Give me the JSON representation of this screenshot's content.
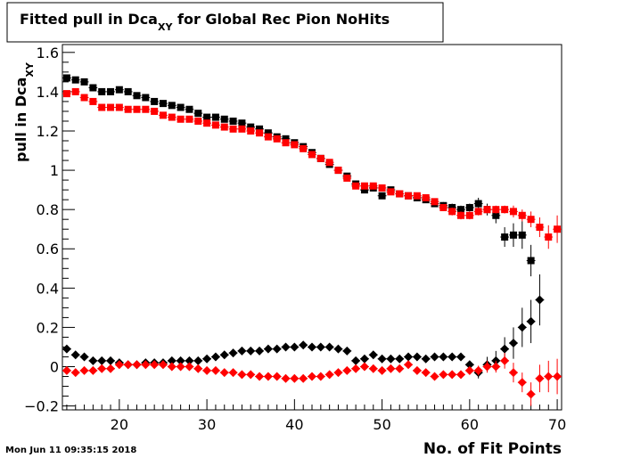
{
  "chart_data": {
    "type": "scatter",
    "title": "Fitted pull in Dca",
    "title_sub": "XY",
    "title_rest": " for Global Rec Pion NoHits",
    "ylabel": "pull in Dca",
    "ylabel_sub": "XY",
    "xlabel": "No. of Fit Points",
    "timestamp": "Mon Jun 11 09:35:15 2018",
    "xlim": [
      13.5,
      70.5
    ],
    "ylim": [
      -0.22,
      1.64
    ],
    "x_ticks": [
      20,
      30,
      40,
      50,
      60,
      70
    ],
    "y_ticks": [
      -0.2,
      0,
      0.2,
      0.4,
      0.6,
      0.8,
      1,
      1.2,
      1.4,
      1.6
    ],
    "y_tick_labels": [
      "−0.2",
      "0",
      "0.2",
      "0.4",
      "0.6",
      "0.8",
      "1",
      "1.2",
      "1.4",
      "1.6"
    ],
    "series": [
      {
        "color": "#000000",
        "marker": "square",
        "points": [
          [
            14,
            1.47
          ],
          [
            15,
            1.46
          ],
          [
            16,
            1.45
          ],
          [
            17,
            1.42
          ],
          [
            18,
            1.4
          ],
          [
            19,
            1.4
          ],
          [
            20,
            1.41
          ],
          [
            21,
            1.4
          ],
          [
            22,
            1.38
          ],
          [
            23,
            1.37
          ],
          [
            24,
            1.35
          ],
          [
            25,
            1.34
          ],
          [
            26,
            1.33
          ],
          [
            27,
            1.32
          ],
          [
            28,
            1.31
          ],
          [
            29,
            1.29
          ],
          [
            30,
            1.27
          ],
          [
            31,
            1.27
          ],
          [
            32,
            1.26
          ],
          [
            33,
            1.25
          ],
          [
            34,
            1.24
          ],
          [
            35,
            1.22
          ],
          [
            36,
            1.21
          ],
          [
            37,
            1.19
          ],
          [
            38,
            1.17
          ],
          [
            39,
            1.16
          ],
          [
            40,
            1.14
          ],
          [
            41,
            1.12
          ],
          [
            42,
            1.09
          ],
          [
            43,
            1.06
          ],
          [
            44,
            1.03
          ],
          [
            45,
            1.0
          ],
          [
            46,
            0.97
          ],
          [
            47,
            0.93
          ],
          [
            48,
            0.9
          ],
          [
            49,
            0.91
          ],
          [
            50,
            0.87
          ],
          [
            51,
            0.9
          ],
          [
            52,
            0.88
          ],
          [
            53,
            0.87
          ],
          [
            54,
            0.86
          ],
          [
            55,
            0.85
          ],
          [
            56,
            0.83
          ],
          [
            57,
            0.82
          ],
          [
            58,
            0.81
          ],
          [
            59,
            0.8
          ],
          [
            60,
            0.81
          ],
          [
            61,
            0.83
          ],
          [
            62,
            0.8
          ],
          [
            63,
            0.77
          ],
          [
            64,
            0.66
          ],
          [
            65,
            0.67
          ],
          [
            66,
            0.67
          ],
          [
            67,
            0.54
          ]
        ],
        "errors": [
          0.008,
          0.008,
          0.008,
          0.008,
          0.008,
          0.008,
          0.008,
          0.008,
          0.008,
          0.008,
          0.008,
          0.008,
          0.008,
          0.008,
          0.008,
          0.008,
          0.008,
          0.008,
          0.008,
          0.008,
          0.008,
          0.008,
          0.008,
          0.008,
          0.008,
          0.008,
          0.008,
          0.008,
          0.008,
          0.008,
          0.008,
          0.008,
          0.01,
          0.01,
          0.01,
          0.01,
          0.012,
          0.012,
          0.012,
          0.012,
          0.014,
          0.015,
          0.016,
          0.018,
          0.02,
          0.02,
          0.02,
          0.03,
          0.03,
          0.04,
          0.05,
          0.06,
          0.07,
          0.08
        ]
      },
      {
        "color": "#ff0000",
        "marker": "square",
        "points": [
          [
            14,
            1.39
          ],
          [
            15,
            1.4
          ],
          [
            16,
            1.37
          ],
          [
            17,
            1.35
          ],
          [
            18,
            1.32
          ],
          [
            19,
            1.32
          ],
          [
            20,
            1.32
          ],
          [
            21,
            1.31
          ],
          [
            22,
            1.31
          ],
          [
            23,
            1.31
          ],
          [
            24,
            1.3
          ],
          [
            25,
            1.28
          ],
          [
            26,
            1.27
          ],
          [
            27,
            1.26
          ],
          [
            28,
            1.26
          ],
          [
            29,
            1.25
          ],
          [
            30,
            1.24
          ],
          [
            31,
            1.23
          ],
          [
            32,
            1.22
          ],
          [
            33,
            1.21
          ],
          [
            34,
            1.21
          ],
          [
            35,
            1.2
          ],
          [
            36,
            1.19
          ],
          [
            37,
            1.17
          ],
          [
            38,
            1.16
          ],
          [
            39,
            1.14
          ],
          [
            40,
            1.13
          ],
          [
            41,
            1.11
          ],
          [
            42,
            1.08
          ],
          [
            43,
            1.06
          ],
          [
            44,
            1.04
          ],
          [
            45,
            1.0
          ],
          [
            46,
            0.96
          ],
          [
            47,
            0.92
          ],
          [
            48,
            0.92
          ],
          [
            49,
            0.92
          ],
          [
            50,
            0.91
          ],
          [
            51,
            0.89
          ],
          [
            52,
            0.88
          ],
          [
            53,
            0.87
          ],
          [
            54,
            0.87
          ],
          [
            55,
            0.86
          ],
          [
            56,
            0.84
          ],
          [
            57,
            0.81
          ],
          [
            58,
            0.79
          ],
          [
            59,
            0.77
          ],
          [
            60,
            0.77
          ],
          [
            61,
            0.79
          ],
          [
            62,
            0.8
          ],
          [
            63,
            0.8
          ],
          [
            64,
            0.8
          ],
          [
            65,
            0.79
          ],
          [
            66,
            0.77
          ],
          [
            67,
            0.75
          ],
          [
            68,
            0.71
          ],
          [
            69,
            0.66
          ],
          [
            70,
            0.7
          ]
        ],
        "errors": [
          0.008,
          0.008,
          0.008,
          0.008,
          0.008,
          0.008,
          0.008,
          0.008,
          0.008,
          0.008,
          0.008,
          0.008,
          0.008,
          0.008,
          0.008,
          0.008,
          0.008,
          0.008,
          0.008,
          0.008,
          0.008,
          0.008,
          0.008,
          0.008,
          0.008,
          0.008,
          0.008,
          0.008,
          0.008,
          0.008,
          0.008,
          0.008,
          0.01,
          0.01,
          0.01,
          0.01,
          0.012,
          0.012,
          0.012,
          0.012,
          0.014,
          0.015,
          0.016,
          0.018,
          0.02,
          0.02,
          0.02,
          0.02,
          0.02,
          0.02,
          0.02,
          0.03,
          0.03,
          0.04,
          0.05,
          0.06,
          0.07
        ]
      },
      {
        "color": "#000000",
        "marker": "diamond",
        "points": [
          [
            14,
            0.09
          ],
          [
            15,
            0.06
          ],
          [
            16,
            0.05
          ],
          [
            17,
            0.03
          ],
          [
            18,
            0.03
          ],
          [
            19,
            0.03
          ],
          [
            20,
            0.02
          ],
          [
            21,
            0.01
          ],
          [
            22,
            0.01
          ],
          [
            23,
            0.02
          ],
          [
            24,
            0.02
          ],
          [
            25,
            0.02
          ],
          [
            26,
            0.03
          ],
          [
            27,
            0.03
          ],
          [
            28,
            0.03
          ],
          [
            29,
            0.03
          ],
          [
            30,
            0.04
          ],
          [
            31,
            0.05
          ],
          [
            32,
            0.06
          ],
          [
            33,
            0.07
          ],
          [
            34,
            0.08
          ],
          [
            35,
            0.08
          ],
          [
            36,
            0.08
          ],
          [
            37,
            0.09
          ],
          [
            38,
            0.09
          ],
          [
            39,
            0.1
          ],
          [
            40,
            0.1
          ],
          [
            41,
            0.11
          ],
          [
            42,
            0.1
          ],
          [
            43,
            0.1
          ],
          [
            44,
            0.1
          ],
          [
            45,
            0.09
          ],
          [
            46,
            0.08
          ],
          [
            47,
            0.03
          ],
          [
            48,
            0.04
          ],
          [
            49,
            0.06
          ],
          [
            50,
            0.04
          ],
          [
            51,
            0.04
          ],
          [
            52,
            0.04
          ],
          [
            53,
            0.05
          ],
          [
            54,
            0.05
          ],
          [
            55,
            0.04
          ],
          [
            56,
            0.05
          ],
          [
            57,
            0.05
          ],
          [
            58,
            0.05
          ],
          [
            59,
            0.05
          ],
          [
            60,
            0.01
          ],
          [
            61,
            -0.03
          ],
          [
            62,
            0.01
          ],
          [
            63,
            0.03
          ],
          [
            64,
            0.09
          ],
          [
            65,
            0.12
          ],
          [
            66,
            0.2
          ],
          [
            67,
            0.23
          ],
          [
            68,
            0.34
          ]
        ],
        "errors": [
          0.008,
          0.008,
          0.008,
          0.008,
          0.008,
          0.008,
          0.008,
          0.008,
          0.008,
          0.008,
          0.008,
          0.008,
          0.008,
          0.008,
          0.008,
          0.008,
          0.008,
          0.008,
          0.008,
          0.008,
          0.008,
          0.008,
          0.008,
          0.008,
          0.008,
          0.008,
          0.008,
          0.008,
          0.008,
          0.008,
          0.008,
          0.008,
          0.008,
          0.01,
          0.01,
          0.01,
          0.01,
          0.012,
          0.012,
          0.012,
          0.012,
          0.014,
          0.014,
          0.015,
          0.016,
          0.018,
          0.02,
          0.03,
          0.04,
          0.05,
          0.06,
          0.08,
          0.1,
          0.11,
          0.13
        ]
      },
      {
        "color": "#ff0000",
        "marker": "diamond",
        "points": [
          [
            14,
            -0.02
          ],
          [
            15,
            -0.03
          ],
          [
            16,
            -0.02
          ],
          [
            17,
            -0.02
          ],
          [
            18,
            -0.01
          ],
          [
            19,
            -0.01
          ],
          [
            20,
            0.01
          ],
          [
            21,
            0.01
          ],
          [
            22,
            0.01
          ],
          [
            23,
            0.01
          ],
          [
            24,
            0.01
          ],
          [
            25,
            0.01
          ],
          [
            26,
            0.0
          ],
          [
            27,
            0.0
          ],
          [
            28,
            0.0
          ],
          [
            29,
            -0.01
          ],
          [
            30,
            -0.02
          ],
          [
            31,
            -0.02
          ],
          [
            32,
            -0.03
          ],
          [
            33,
            -0.03
          ],
          [
            34,
            -0.04
          ],
          [
            35,
            -0.04
          ],
          [
            36,
            -0.05
          ],
          [
            37,
            -0.05
          ],
          [
            38,
            -0.05
          ],
          [
            39,
            -0.06
          ],
          [
            40,
            -0.06
          ],
          [
            41,
            -0.06
          ],
          [
            42,
            -0.05
          ],
          [
            43,
            -0.05
          ],
          [
            44,
            -0.04
          ],
          [
            45,
            -0.03
          ],
          [
            46,
            -0.02
          ],
          [
            47,
            -0.01
          ],
          [
            48,
            0.0
          ],
          [
            49,
            -0.01
          ],
          [
            50,
            -0.02
          ],
          [
            51,
            -0.01
          ],
          [
            52,
            -0.01
          ],
          [
            53,
            0.01
          ],
          [
            54,
            -0.02
          ],
          [
            55,
            -0.03
          ],
          [
            56,
            -0.05
          ],
          [
            57,
            -0.04
          ],
          [
            58,
            -0.04
          ],
          [
            59,
            -0.04
          ],
          [
            60,
            -0.02
          ],
          [
            61,
            -0.02
          ],
          [
            62,
            0.0
          ],
          [
            63,
            0.0
          ],
          [
            64,
            0.03
          ],
          [
            65,
            -0.03
          ],
          [
            66,
            -0.08
          ],
          [
            67,
            -0.14
          ],
          [
            68,
            -0.06
          ],
          [
            69,
            -0.05
          ],
          [
            70,
            -0.05
          ]
        ],
        "errors": [
          0.008,
          0.008,
          0.008,
          0.008,
          0.008,
          0.008,
          0.008,
          0.008,
          0.008,
          0.008,
          0.008,
          0.008,
          0.008,
          0.008,
          0.008,
          0.008,
          0.008,
          0.008,
          0.008,
          0.008,
          0.008,
          0.008,
          0.008,
          0.008,
          0.008,
          0.008,
          0.008,
          0.008,
          0.008,
          0.008,
          0.008,
          0.008,
          0.01,
          0.01,
          0.01,
          0.01,
          0.012,
          0.012,
          0.012,
          0.012,
          0.014,
          0.015,
          0.016,
          0.018,
          0.02,
          0.02,
          0.02,
          0.025,
          0.03,
          0.03,
          0.04,
          0.05,
          0.05,
          0.06,
          0.07,
          0.08,
          0.09
        ]
      }
    ]
  }
}
